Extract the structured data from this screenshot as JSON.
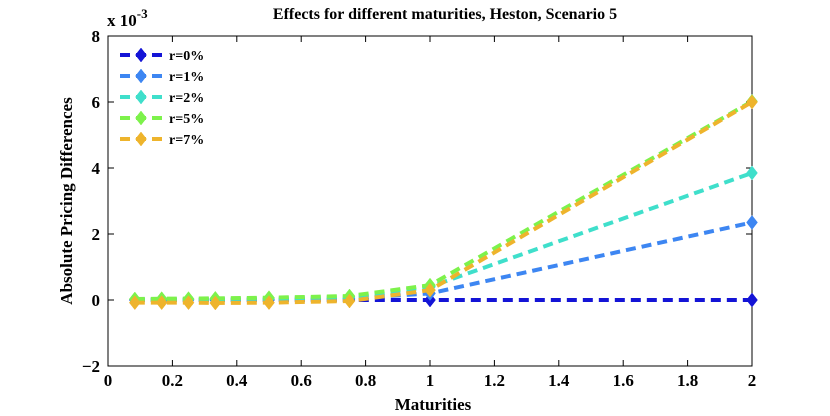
{
  "chart_data": {
    "type": "line",
    "title": "Effects for different maturities, Heston, Scenario 5",
    "xlabel": "Maturities",
    "ylabel": "Absolute Pricing Differences",
    "y_scale_base": "x 10",
    "y_scale_exponent": "-3",
    "xlim": [
      0,
      2
    ],
    "ylim": [
      -2,
      8
    ],
    "xticks": [
      0,
      0.2,
      0.4,
      0.6,
      0.8,
      1,
      1.2,
      1.4,
      1.6,
      1.8,
      2
    ],
    "xtick_labels": [
      "0",
      "0.2",
      "0.4",
      "0.6",
      "0.8",
      "1",
      "1.2",
      "1.4",
      "1.6",
      "1.8",
      "2"
    ],
    "yticks": [
      -2,
      0,
      2,
      4,
      6,
      8
    ],
    "ytick_labels": [
      "−2",
      "0",
      "2",
      "4",
      "6",
      "8"
    ],
    "legend_position": "top-left",
    "x": [
      0.0833,
      0.1667,
      0.25,
      0.3333,
      0.5,
      0.75,
      1,
      2
    ],
    "series": [
      {
        "name": "r=0%",
        "color": "#1414d6",
        "values": [
          0,
          0,
          0,
          0,
          0,
          0,
          0,
          0
        ]
      },
      {
        "name": "r=1%",
        "color": "#3d86f2",
        "values": [
          0.01,
          0.01,
          0.01,
          0.01,
          0.02,
          0.05,
          0.2,
          2.35
        ]
      },
      {
        "name": "r=2%",
        "color": "#3fdfcb",
        "values": [
          0.02,
          0.02,
          0.02,
          0.03,
          0.04,
          0.09,
          0.4,
          3.85
        ]
      },
      {
        "name": "r=5%",
        "color": "#7df24b",
        "values": [
          0.03,
          0.04,
          0.04,
          0.05,
          0.07,
          0.12,
          0.45,
          6.02
        ]
      },
      {
        "name": "r=7%",
        "color": "#eeb42c",
        "values": [
          -0.08,
          -0.08,
          -0.08,
          -0.09,
          -0.08,
          -0.03,
          0.3,
          6.0
        ]
      }
    ]
  }
}
